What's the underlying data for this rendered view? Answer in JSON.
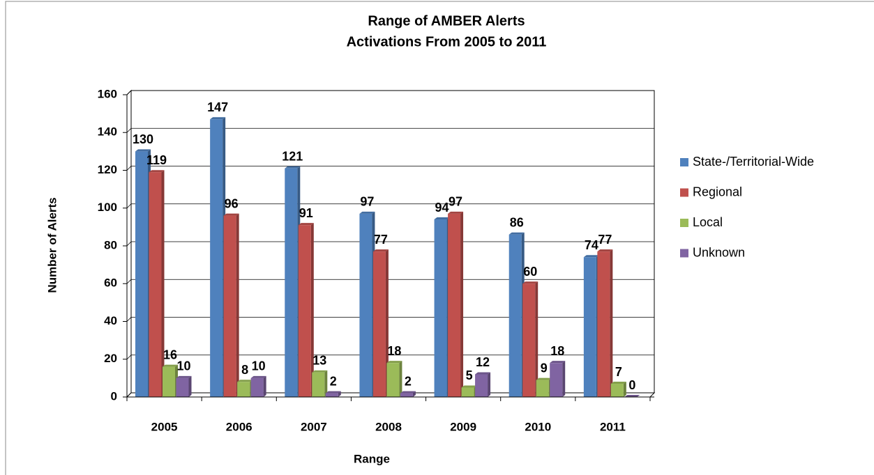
{
  "chart_data": {
    "type": "bar",
    "title": [
      "Range of AMBER Alerts",
      "Activations From 2005 to 2011"
    ],
    "x_label": "Range",
    "y_label": "Number of Alerts",
    "categories": [
      "2005",
      "2006",
      "2007",
      "2008",
      "2009",
      "2010",
      "2011"
    ],
    "series": [
      {
        "name": "State-/Territorial-Wide",
        "color": "#4f81bd",
        "values": [
          130,
          147,
          121,
          97,
          94,
          86,
          74
        ]
      },
      {
        "name": "Regional",
        "color": "#c0504d",
        "values": [
          119,
          96,
          91,
          77,
          97,
          60,
          77
        ]
      },
      {
        "name": "Local",
        "color": "#9bbb59",
        "values": [
          16,
          8,
          13,
          18,
          5,
          9,
          7
        ]
      },
      {
        "name": "Unknown",
        "color": "#8064a2",
        "values": [
          10,
          10,
          2,
          2,
          12,
          18,
          0
        ]
      }
    ],
    "ylim": [
      0,
      160
    ],
    "yticks": [
      0,
      20,
      40,
      60,
      80,
      100,
      120,
      140,
      160
    ],
    "grid": true,
    "legend": "right"
  }
}
